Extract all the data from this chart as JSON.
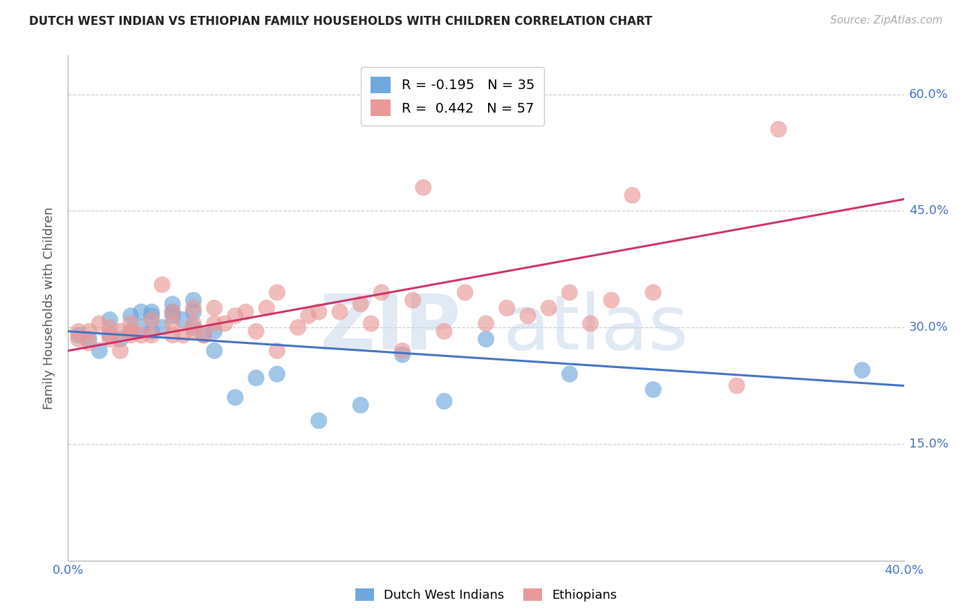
{
  "title": "DUTCH WEST INDIAN VS ETHIOPIAN FAMILY HOUSEHOLDS WITH CHILDREN CORRELATION CHART",
  "source": "Source: ZipAtlas.com",
  "ylabel": "Family Households with Children",
  "x_min": 0.0,
  "x_max": 0.4,
  "y_min": 0.0,
  "y_max": 0.65,
  "yticks": [
    0.0,
    0.15,
    0.3,
    0.45,
    0.6
  ],
  "ytick_labels_right": [
    "",
    "15.0%",
    "30.0%",
    "45.0%",
    "60.0%"
  ],
  "xtick_labels": [
    "0.0%",
    "",
    "",
    "",
    "40.0%"
  ],
  "blue_label": "Dutch West Indians",
  "pink_label": "Ethiopians",
  "blue_R": -0.195,
  "blue_N": 35,
  "pink_R": 0.442,
  "pink_N": 57,
  "blue_color": "#6fa8dc",
  "pink_color": "#ea9999",
  "blue_line_color": "#4472c4",
  "pink_line_color": "#cc3366",
  "blue_scatter_x": [
    0.005,
    0.01,
    0.015,
    0.02,
    0.02,
    0.025,
    0.03,
    0.03,
    0.035,
    0.035,
    0.04,
    0.04,
    0.04,
    0.045,
    0.05,
    0.05,
    0.05,
    0.055,
    0.06,
    0.06,
    0.06,
    0.065,
    0.07,
    0.07,
    0.08,
    0.09,
    0.1,
    0.12,
    0.14,
    0.16,
    0.18,
    0.2,
    0.24,
    0.28,
    0.38
  ],
  "blue_scatter_y": [
    0.29,
    0.285,
    0.27,
    0.29,
    0.31,
    0.285,
    0.295,
    0.315,
    0.3,
    0.32,
    0.315,
    0.295,
    0.32,
    0.3,
    0.315,
    0.32,
    0.33,
    0.31,
    0.3,
    0.32,
    0.335,
    0.29,
    0.27,
    0.295,
    0.21,
    0.235,
    0.24,
    0.18,
    0.2,
    0.265,
    0.205,
    0.285,
    0.24,
    0.22,
    0.245
  ],
  "pink_scatter_x": [
    0.005,
    0.005,
    0.01,
    0.01,
    0.015,
    0.02,
    0.02,
    0.02,
    0.025,
    0.025,
    0.03,
    0.03,
    0.03,
    0.035,
    0.04,
    0.04,
    0.045,
    0.05,
    0.05,
    0.05,
    0.055,
    0.06,
    0.06,
    0.06,
    0.065,
    0.07,
    0.07,
    0.075,
    0.08,
    0.085,
    0.09,
    0.095,
    0.1,
    0.1,
    0.11,
    0.115,
    0.12,
    0.13,
    0.14,
    0.145,
    0.15,
    0.16,
    0.165,
    0.17,
    0.18,
    0.19,
    0.2,
    0.21,
    0.22,
    0.23,
    0.24,
    0.25,
    0.26,
    0.27,
    0.28,
    0.32,
    0.34
  ],
  "pink_scatter_y": [
    0.285,
    0.295,
    0.28,
    0.295,
    0.305,
    0.285,
    0.29,
    0.3,
    0.27,
    0.295,
    0.29,
    0.295,
    0.305,
    0.29,
    0.29,
    0.31,
    0.355,
    0.29,
    0.305,
    0.32,
    0.29,
    0.295,
    0.305,
    0.325,
    0.29,
    0.305,
    0.325,
    0.305,
    0.315,
    0.32,
    0.295,
    0.325,
    0.27,
    0.345,
    0.3,
    0.315,
    0.32,
    0.32,
    0.33,
    0.305,
    0.345,
    0.27,
    0.335,
    0.48,
    0.295,
    0.345,
    0.305,
    0.325,
    0.315,
    0.325,
    0.345,
    0.305,
    0.335,
    0.47,
    0.345,
    0.225,
    0.555
  ],
  "blue_line_x0": 0.0,
  "blue_line_x1": 0.4,
  "blue_line_y0": 0.295,
  "blue_line_y1": 0.225,
  "pink_line_x0": 0.0,
  "pink_line_x1": 0.4,
  "pink_line_y0": 0.27,
  "pink_line_y1": 0.465
}
